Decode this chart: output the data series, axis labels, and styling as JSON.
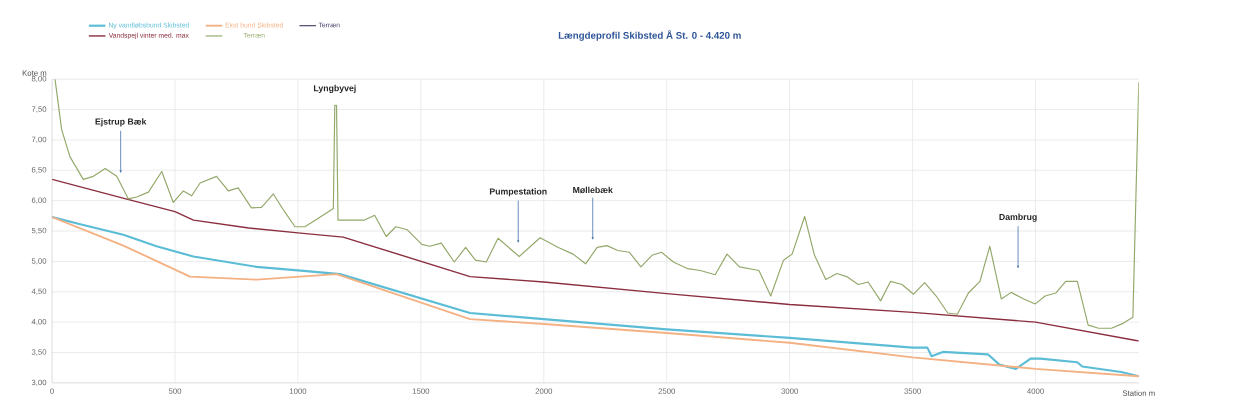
{
  "chart_data": {
    "type": "line",
    "title": "Længdeprofil Skibsted Å St. 0 - 4.420 m",
    "xlabel": "Station m",
    "ylabel": "Kote m",
    "xlim": [
      0,
      4420
    ],
    "xticks": [
      0,
      500,
      1000,
      1500,
      2000,
      2500,
      3000,
      3500,
      4000
    ],
    "ylim": [
      3,
      8
    ],
    "yticks": [
      {
        "value": 3,
        "label": "3,00"
      },
      {
        "value": 3.5,
        "label": "3,50"
      },
      {
        "value": 4,
        "label": "4,00"
      },
      {
        "value": 4.5,
        "label": "4,50"
      },
      {
        "value": 5,
        "label": "5,00"
      },
      {
        "value": 5.5,
        "label": "5,50"
      },
      {
        "value": 6,
        "label": "6,00"
      },
      {
        "value": 6.5,
        "label": "6,50"
      },
      {
        "value": 7,
        "label": "7,00"
      },
      {
        "value": 7.5,
        "label": "7,50"
      },
      {
        "value": 8,
        "label": "8,00"
      }
    ],
    "grid": true,
    "legend": "top left",
    "series": [
      {
        "name": "Ny vandløbsbund Skibsted",
        "color": "#5bbcd6",
        "x": [
          0,
          127,
          290,
          425,
          575,
          832,
          1035,
          1171,
          1700,
          2000,
          2500,
          3000,
          3500,
          3560,
          3577,
          3623,
          3806,
          3853,
          3920,
          3980,
          4020,
          4170,
          4190,
          4348,
          4420
        ],
        "values": [
          5.73,
          5.6,
          5.44,
          5.25,
          5.08,
          4.91,
          4.84,
          4.79,
          4.15,
          4.05,
          3.88,
          3.74,
          3.58,
          3.58,
          3.44,
          3.51,
          3.47,
          3.3,
          3.23,
          3.4,
          3.4,
          3.34,
          3.27,
          3.18,
          3.11
        ]
      },
      {
        "name": "Ekst bund Skibsted",
        "color": "#f4b183",
        "x": [
          0,
          290,
          561,
          832,
          1157,
          1700,
          2000,
          2500,
          3000,
          3500,
          4000,
          4420
        ],
        "values": [
          5.73,
          5.26,
          4.75,
          4.7,
          4.79,
          4.05,
          3.97,
          3.82,
          3.66,
          3.42,
          3.23,
          3.11
        ]
      },
      {
        "name": "Terræn",
        "color": "#4b3f6b"
      },
      {
        "name": "Vandspejl vinter med. max",
        "color": "#8b2e3e",
        "x": [
          0,
          300,
          500,
          575,
          800,
          1000,
          1184,
          1700,
          2000,
          2500,
          3000,
          3500,
          4000,
          4420
        ],
        "values": [
          6.35,
          6.03,
          5.82,
          5.68,
          5.55,
          5.47,
          5.4,
          4.75,
          4.66,
          4.47,
          4.29,
          4.16,
          4.0,
          3.69
        ]
      },
      {
        "name": "Terræn",
        "color": "#93a86a",
        "x": [
          12,
          39,
          73,
          127,
          168,
          216,
          263,
          310,
          344,
          392,
          446,
          493,
          534,
          568,
          602,
          669,
          717,
          757,
          811,
          852,
          900,
          947,
          988,
          1028,
          1083,
          1144,
          1150,
          1157,
          1163,
          1271,
          1312,
          1359,
          1398,
          1445,
          1504,
          1536,
          1583,
          1636,
          1682,
          1722,
          1766,
          1814,
          1900,
          1985,
          2059,
          2119,
          2170,
          2217,
          2257,
          2301,
          2348,
          2395,
          2440,
          2479,
          2527,
          2586,
          2637,
          2697,
          2745,
          2796,
          2875,
          2923,
          2975,
          3010,
          3061,
          3101,
          3147,
          3192,
          3232,
          3279,
          3319,
          3370,
          3410,
          3457,
          3504,
          3549,
          3596,
          3643,
          3682,
          3727,
          3774,
          3814,
          3861,
          3901,
          3952,
          3999,
          4039,
          4083,
          4123,
          4170,
          4214,
          4257,
          4309,
          4356,
          4396,
          4420
        ],
        "values": [
          8.0,
          7.17,
          6.72,
          6.35,
          6.4,
          6.53,
          6.4,
          6.03,
          6.06,
          6.14,
          6.48,
          5.97,
          6.16,
          6.08,
          6.29,
          6.4,
          6.16,
          6.21,
          5.88,
          5.89,
          6.11,
          5.81,
          5.57,
          5.57,
          5.71,
          5.87,
          7.57,
          7.57,
          5.68,
          5.68,
          5.76,
          5.41,
          5.57,
          5.52,
          5.28,
          5.25,
          5.3,
          4.99,
          5.23,
          5.02,
          4.99,
          5.38,
          5.08,
          5.39,
          5.23,
          5.12,
          4.96,
          5.23,
          5.26,
          5.18,
          5.15,
          4.91,
          5.1,
          5.15,
          4.99,
          4.88,
          4.85,
          4.78,
          5.12,
          4.91,
          4.85,
          4.43,
          5.02,
          5.12,
          5.74,
          5.1,
          4.7,
          4.8,
          4.75,
          4.62,
          4.66,
          4.35,
          4.67,
          4.62,
          4.46,
          4.65,
          4.43,
          4.15,
          4.13,
          4.48,
          4.67,
          5.25,
          4.38,
          4.49,
          4.38,
          4.3,
          4.43,
          4.48,
          4.67,
          4.67,
          3.95,
          3.9,
          3.9,
          3.98,
          4.08,
          7.95
        ]
      }
    ],
    "annotations": [
      {
        "text": "Ejstrup Bæk",
        "x": 279,
        "y": 6.45
      },
      {
        "text": "Lyngbyvej",
        "x": 1150,
        "y": 7.57
      },
      {
        "text": "Pumpestation",
        "x": 1896,
        "y": 5.3
      },
      {
        "text": "Møllebæk",
        "x": 2199,
        "y": 5.35
      },
      {
        "text": "Dambrug",
        "x": 3929,
        "y": 4.88
      }
    ]
  }
}
